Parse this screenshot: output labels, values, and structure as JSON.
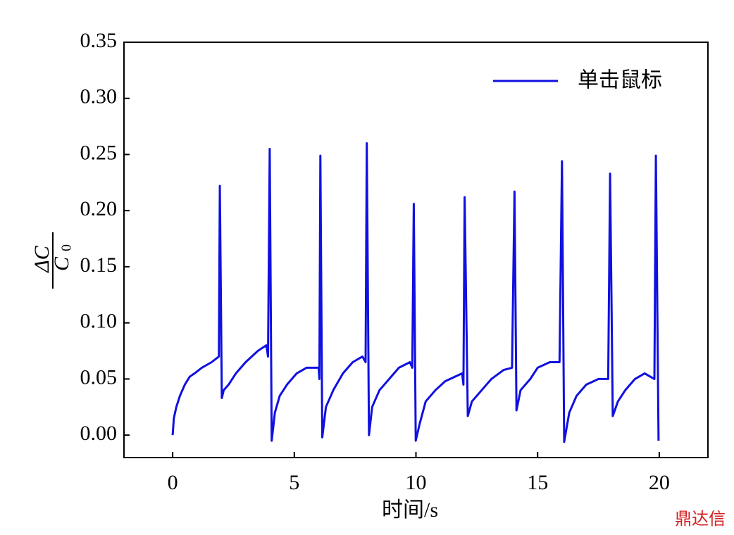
{
  "chart_data": {
    "type": "line",
    "x_label": "时间/s",
    "y_label": {
      "numerator": "ΔC",
      "denominator": "C",
      "denominator_subscript": "0"
    },
    "xlim": [
      -2,
      22
    ],
    "ylim": [
      -0.02,
      0.35
    ],
    "xticks": [
      0,
      5,
      10,
      15,
      20
    ],
    "yticks": [
      {
        "value": 0,
        "label": "0.00"
      },
      {
        "value": 0.05,
        "label": "0.05"
      },
      {
        "value": 0.1,
        "label": "0.10"
      },
      {
        "value": 0.15,
        "label": "0.15"
      },
      {
        "value": 0.2,
        "label": "0.20"
      },
      {
        "value": 0.25,
        "label": "0.25"
      },
      {
        "value": 0.3,
        "label": "0.30"
      },
      {
        "value": 0.35,
        "label": "0.35"
      }
    ],
    "legend": "upper right",
    "watermark": "鼎达信",
    "series": [
      {
        "name": "单击鼠标",
        "color": "#1010e0",
        "x": [
          0,
          0.05,
          0.15,
          0.3,
          0.5,
          0.7,
          0.9,
          1.2,
          1.6,
          1.9,
          1.94,
          2.02,
          2.1,
          2.3,
          2.6,
          3.0,
          3.5,
          3.85,
          3.92,
          3.99,
          4.07,
          4.2,
          4.4,
          4.7,
          5.1,
          5.5,
          6.0,
          6.03,
          6.07,
          6.15,
          6.3,
          6.6,
          7.0,
          7.4,
          7.8,
          7.93,
          7.98,
          8.07,
          8.2,
          8.5,
          8.9,
          9.3,
          9.75,
          9.85,
          9.91,
          9.99,
          10.15,
          10.4,
          10.8,
          11.2,
          11.9,
          11.95,
          12.0,
          12.13,
          12.3,
          12.7,
          13.1,
          13.6,
          13.95,
          14.05,
          14.13,
          14.3,
          14.7,
          15.0,
          15.5,
          15.9,
          16.0,
          16.09,
          16.3,
          16.6,
          17.0,
          17.5,
          17.9,
          17.98,
          18.09,
          18.3,
          18.6,
          19.0,
          19.4,
          19.8,
          19.86,
          19.97
        ],
        "values": [
          0,
          0.015,
          0.025,
          0.035,
          0.045,
          0.052,
          0.055,
          0.06,
          0.065,
          0.07,
          0.222,
          0.033,
          0.04,
          0.045,
          0.055,
          0.065,
          0.075,
          0.08,
          0.07,
          0.255,
          -0.005,
          0.02,
          0.035,
          0.045,
          0.055,
          0.06,
          0.06,
          0.05,
          0.249,
          -0.002,
          0.025,
          0.04,
          0.055,
          0.065,
          0.07,
          0.065,
          0.26,
          0,
          0.025,
          0.04,
          0.05,
          0.06,
          0.065,
          0.06,
          0.206,
          -0.005,
          0.01,
          0.03,
          0.04,
          0.048,
          0.055,
          0.045,
          0.212,
          0.017,
          0.03,
          0.04,
          0.05,
          0.058,
          0.06,
          0.217,
          0.022,
          0.04,
          0.05,
          0.06,
          0.065,
          0.065,
          0.244,
          -0.006,
          0.02,
          0.035,
          0.045,
          0.05,
          0.05,
          0.233,
          0.017,
          0.03,
          0.04,
          0.05,
          0.055,
          0.05,
          0.249,
          -0.005
        ]
      }
    ]
  }
}
